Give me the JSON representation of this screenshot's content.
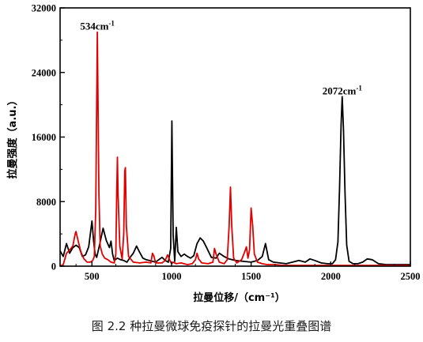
{
  "figure": {
    "caption": "图 2.2 种拉曼微球免疫探针的拉曼光重叠图谱"
  },
  "chart_data": {
    "type": "line",
    "xlabel": "拉曼位移/（cm⁻¹）",
    "ylabel": "拉曼强度（a.u.）",
    "xlim": [
      300,
      2500
    ],
    "ylim": [
      0,
      32000
    ],
    "x_ticks": [
      "500",
      "1000",
      "1500",
      "2000",
      "2500"
    ],
    "y_ticks": [
      "0",
      "8000",
      "16000",
      "24000",
      "32000"
    ],
    "grid": false,
    "legend": "none",
    "annotations": [
      {
        "base": "534cm",
        "sup": "-1",
        "x": 534,
        "y": 29300
      },
      {
        "base": "2072cm",
        "sup": "-1",
        "x": 2072,
        "y": 21300
      }
    ],
    "series": [
      {
        "color": "#000000",
        "x": [
          300,
          320,
          340,
          360,
          380,
          400,
          420,
          440,
          460,
          480,
          500,
          510,
          520,
          530,
          550,
          570,
          590,
          610,
          620,
          630,
          640,
          660,
          680,
          700,
          720,
          740,
          760,
          780,
          800,
          820,
          840,
          860,
          880,
          900,
          920,
          940,
          960,
          980,
          995,
          1002,
          1010,
          1020,
          1030,
          1040,
          1060,
          1080,
          1100,
          1120,
          1140,
          1160,
          1180,
          1200,
          1220,
          1250,
          1280,
          1300,
          1330,
          1360,
          1400,
          1450,
          1500,
          1540,
          1570,
          1590,
          1610,
          1640,
          1680,
          1720,
          1760,
          1800,
          1840,
          1870,
          1900,
          1940,
          1980,
          2010,
          2030,
          2045,
          2055,
          2065,
          2072,
          2080,
          2090,
          2100,
          2115,
          2140,
          2170,
          2200,
          2230,
          2260,
          2300,
          2350,
          2400,
          2450,
          2500
        ],
        "y": [
          1900,
          1200,
          2800,
          1600,
          2300,
          2600,
          2300,
          1200,
          1400,
          2400,
          5600,
          3200,
          1500,
          1100,
          2800,
          4700,
          3200,
          2300,
          3100,
          1500,
          700,
          1000,
          800,
          700,
          500,
          1100,
          1600,
          2500,
          1700,
          1000,
          800,
          700,
          600,
          500,
          800,
          1100,
          700,
          500,
          2200,
          18000,
          3800,
          600,
          4800,
          1800,
          1200,
          1500,
          1200,
          1000,
          1300,
          2800,
          3500,
          3100,
          2300,
          1100,
          1000,
          1600,
          1200,
          900,
          700,
          600,
          500,
          700,
          1200,
          2800,
          800,
          500,
          400,
          300,
          500,
          700,
          500,
          900,
          700,
          400,
          300,
          300,
          800,
          3000,
          9500,
          17500,
          21000,
          17000,
          9000,
          2600,
          600,
          300,
          300,
          500,
          900,
          800,
          300,
          200,
          200,
          200,
          200
        ]
      },
      {
        "color": "#e00000",
        "x": [
          300,
          320,
          340,
          360,
          380,
          395,
          400,
          410,
          430,
          450,
          470,
          490,
          505,
          515,
          524,
          534,
          544,
          552,
          565,
          580,
          600,
          620,
          640,
          650,
          656,
          660,
          664,
          675,
          690,
          700,
          706,
          710,
          716,
          730,
          760,
          800,
          840,
          870,
          880,
          890,
          900,
          940,
          960,
          975,
          990,
          1000,
          1010,
          1030,
          1060,
          1100,
          1130,
          1150,
          1160,
          1170,
          1190,
          1230,
          1260,
          1270,
          1280,
          1300,
          1330,
          1350,
          1362,
          1370,
          1378,
          1390,
          1410,
          1440,
          1460,
          1470,
          1480,
          1490,
          1500,
          1510,
          1520,
          1540,
          1570,
          1600,
          1650,
          1700,
          1800,
          1900,
          2000,
          2100,
          2200,
          2300,
          2400,
          2500
        ],
        "y": [
          0,
          200,
          1600,
          2000,
          2500,
          4000,
          4300,
          3400,
          1800,
          900,
          500,
          500,
          700,
          1200,
          7000,
          29000,
          9000,
          2500,
          1500,
          1000,
          800,
          500,
          400,
          1500,
          9500,
          13500,
          9000,
          2500,
          900,
          4000,
          11800,
          12200,
          5000,
          1200,
          500,
          400,
          500,
          400,
          1600,
          1200,
          400,
          400,
          700,
          1400,
          700,
          300,
          500,
          300,
          400,
          200,
          300,
          800,
          1600,
          900,
          400,
          300,
          500,
          2200,
          1500,
          500,
          300,
          800,
          5000,
          9800,
          5000,
          1000,
          400,
          800,
          1800,
          2400,
          1000,
          2000,
          7200,
          5000,
          1500,
          500,
          300,
          200,
          200,
          100,
          100,
          100,
          100,
          100,
          100,
          100,
          100,
          100
        ]
      }
    ]
  }
}
